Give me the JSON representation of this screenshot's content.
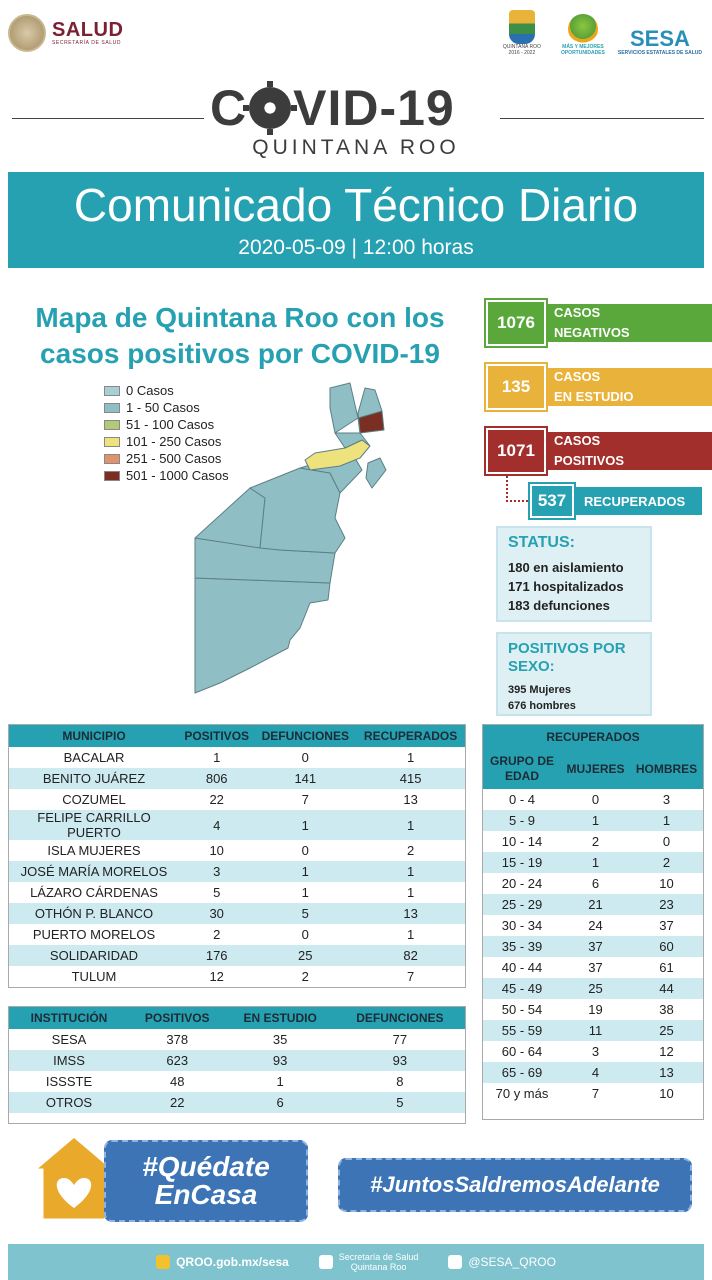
{
  "header": {
    "salud_name": "SALUD",
    "salud_sub": "SECRETARÍA DE SALUD",
    "qroo_logo_text": "QUINTANA ROO",
    "qroo_logo_sub": "2016 - 2022",
    "mas_text": "MÁS Y MEJORES OPORTUNIDADES",
    "sesa_name": "SESA",
    "sesa_sub": "SERVICIOS ESTATALES DE SALUD"
  },
  "title": {
    "covid_left": "C",
    "covid_right": "VID-19",
    "region": "QUINTANA ROO"
  },
  "banner": {
    "title": "Comunicado Técnico Diario",
    "date": "2020-05-09 | 12:00 horas"
  },
  "map": {
    "title": "Mapa de Quintana Roo con los casos positivos por COVID-19",
    "legend": [
      {
        "label": "0 Casos",
        "color": "#a9cfd6"
      },
      {
        "label": "1 - 50 Casos",
        "color": "#8fbfc4"
      },
      {
        "label": "51 - 100 Casos",
        "color": "#b3c97a"
      },
      {
        "label": "101 - 250 Casos",
        "color": "#ede27c"
      },
      {
        "label": "251 - 500 Casos",
        "color": "#e0936a"
      },
      {
        "label": "501 - 1000 Casos",
        "color": "#7b2e22"
      }
    ]
  },
  "stats": {
    "negativos": {
      "value": "1076",
      "label1": "CASOS",
      "label2": "NEGATIVOS",
      "color": "#5aa83c"
    },
    "estudio": {
      "value": "135",
      "label1": "CASOS",
      "label2": "EN ESTUDIO",
      "color": "#e9b23a"
    },
    "positivos": {
      "value": "1071",
      "label1": "CASOS",
      "label2": "POSITIVOS",
      "color": "#a32f2d"
    },
    "recuperados": {
      "value": "537",
      "label": "RECUPERADOS",
      "color": "#26a1b1"
    }
  },
  "status": {
    "heading": "STATUS:",
    "lines": [
      "180 en aislamiento",
      "171 hospitalizados",
      "183 defunciones"
    ]
  },
  "sexo": {
    "heading": "POSITIVOS POR SEXO:",
    "lines": [
      "395 Mujeres",
      "676 hombres"
    ]
  },
  "municipios": {
    "headers": [
      "MUNICIPIO",
      "POSITIVOS",
      "DEFUNCIONES",
      "RECUPERADOS"
    ],
    "rows": [
      [
        "BACALAR",
        "1",
        "0",
        "1"
      ],
      [
        "BENITO JUÁREZ",
        "806",
        "141",
        "415"
      ],
      [
        "COZUMEL",
        "22",
        "7",
        "13"
      ],
      [
        "FELIPE CARRILLO PUERTO",
        "4",
        "1",
        "1"
      ],
      [
        "ISLA MUJERES",
        "10",
        "0",
        "2"
      ],
      [
        "JOSÉ MARÍA MORELOS",
        "3",
        "1",
        "1"
      ],
      [
        "LÁZARO CÁRDENAS",
        "5",
        "1",
        "1"
      ],
      [
        "OTHÓN P. BLANCO",
        "30",
        "5",
        "13"
      ],
      [
        "PUERTO MORELOS",
        "2",
        "0",
        "1"
      ],
      [
        "SOLIDARIDAD",
        "176",
        "25",
        "82"
      ],
      [
        "TULUM",
        "12",
        "2",
        "7"
      ]
    ]
  },
  "instituciones": {
    "headers": [
      "INSTITUCIÓN",
      "POSITIVOS",
      "EN ESTUDIO",
      "DEFUNCIONES"
    ],
    "rows": [
      [
        "SESA",
        "378",
        "35",
        "77"
      ],
      [
        "IMSS",
        "623",
        "93",
        "93"
      ],
      [
        "ISSSTE",
        "48",
        "1",
        "8"
      ],
      [
        "OTROS",
        "22",
        "6",
        "5"
      ]
    ]
  },
  "recuperados_edad": {
    "title": "RECUPERADOS",
    "headers": [
      "GRUPO DE EDAD",
      "MUJERES",
      "HOMBRES"
    ],
    "rows": [
      [
        "0 - 4",
        "0",
        "3"
      ],
      [
        "5 - 9",
        "1",
        "1"
      ],
      [
        "10 - 14",
        "2",
        "0"
      ],
      [
        "15 - 19",
        "1",
        "2"
      ],
      [
        "20 - 24",
        "6",
        "10"
      ],
      [
        "25 - 29",
        "21",
        "23"
      ],
      [
        "30 - 34",
        "24",
        "37"
      ],
      [
        "35 - 39",
        "37",
        "60"
      ],
      [
        "40 - 44",
        "37",
        "61"
      ],
      [
        "45 - 49",
        "25",
        "44"
      ],
      [
        "50 - 54",
        "19",
        "38"
      ],
      [
        "55 - 59",
        "11",
        "25"
      ],
      [
        "60 - 64",
        "3",
        "12"
      ],
      [
        "65 - 69",
        "4",
        "13"
      ],
      [
        "70 y más",
        "7",
        "10"
      ]
    ]
  },
  "slogans": {
    "quedate_1": "#Quédate",
    "quedate_2": "EnCasa",
    "juntos": "#JuntosSaldremosAdelante"
  },
  "footer": {
    "web": "QROO.gob.mx/sesa",
    "facebook_1": "Secretaría de Salud",
    "facebook_2": "Quintana Roo",
    "twitter": "@SESA_QROO"
  }
}
